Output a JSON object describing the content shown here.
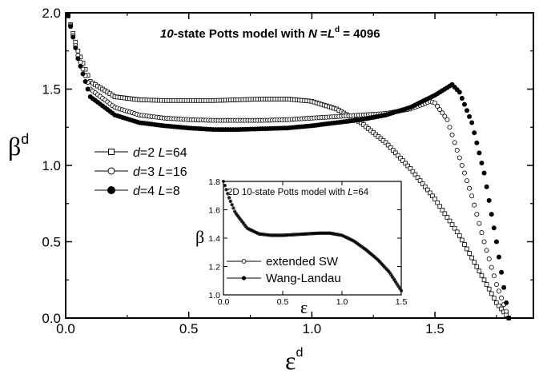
{
  "chart_data": [
    {
      "type": "scatter",
      "title_html": "10-state Potts model with N = L^d = 4096",
      "title_parts": {
        "q": "10",
        "rest": "-state Potts model with ",
        "N": "N",
        "eq1": " =",
        "L": "L",
        "sup": "d",
        "eq2": " = 4096"
      },
      "xlabel": "ε",
      "xlabel_sup": "d",
      "ylabel": "β",
      "ylabel_sup": "d",
      "xlim": [
        0,
        1.9
      ],
      "ylim": [
        0,
        2.0
      ],
      "xticks": [
        "0.0",
        "0.5",
        "1.0",
        "1.5"
      ],
      "yticks": [
        "0.0",
        "0.5",
        "1.0",
        "1.5",
        "2.0"
      ],
      "series": [
        {
          "name": "d=2 L=64",
          "label_parts": {
            "d": "d",
            "dv": "=2 ",
            "L": "L",
            "Lv": "=64"
          },
          "marker": "open-square",
          "x": [
            0.01,
            0.05,
            0.1,
            0.2,
            0.3,
            0.4,
            0.5,
            0.6,
            0.7,
            0.8,
            0.9,
            1.0,
            1.1,
            1.2,
            1.3,
            1.4,
            1.5,
            1.6,
            1.7,
            1.75,
            1.8
          ],
          "y": [
            1.98,
            1.75,
            1.55,
            1.45,
            1.43,
            1.425,
            1.425,
            1.425,
            1.43,
            1.435,
            1.435,
            1.42,
            1.37,
            1.28,
            1.15,
            0.98,
            0.78,
            0.54,
            0.25,
            0.1,
            0.0
          ]
        },
        {
          "name": "d=3 L=16",
          "label_parts": {
            "d": "d",
            "dv": "=3 ",
            "L": "L",
            "Lv": "=16"
          },
          "marker": "open-circle",
          "x": [
            0.01,
            0.05,
            0.1,
            0.2,
            0.3,
            0.4,
            0.5,
            0.6,
            0.7,
            0.8,
            0.9,
            1.0,
            1.1,
            1.2,
            1.3,
            1.4,
            1.45,
            1.48,
            1.5,
            1.55,
            1.6,
            1.65,
            1.7,
            1.75,
            1.8
          ],
          "y": [
            1.98,
            1.72,
            1.5,
            1.38,
            1.33,
            1.31,
            1.3,
            1.295,
            1.295,
            1.295,
            1.3,
            1.31,
            1.32,
            1.33,
            1.34,
            1.37,
            1.4,
            1.42,
            1.41,
            1.3,
            1.05,
            0.8,
            0.5,
            0.22,
            0.0
          ]
        },
        {
          "name": "d=4 L=8",
          "label_parts": {
            "d": "d",
            "dv": "=4 ",
            "L": "L",
            "Lv": "=8"
          },
          "marker": "filled-circle",
          "x": [
            0.01,
            0.05,
            0.1,
            0.2,
            0.3,
            0.4,
            0.5,
            0.6,
            0.7,
            0.8,
            0.9,
            1.0,
            1.1,
            1.2,
            1.3,
            1.4,
            1.5,
            1.55,
            1.57,
            1.6,
            1.65,
            1.7,
            1.75,
            1.8
          ],
          "y": [
            1.98,
            1.7,
            1.45,
            1.33,
            1.28,
            1.26,
            1.245,
            1.235,
            1.235,
            1.24,
            1.245,
            1.26,
            1.28,
            1.3,
            1.33,
            1.38,
            1.46,
            1.51,
            1.53,
            1.48,
            1.28,
            0.95,
            0.5,
            0.0
          ]
        }
      ],
      "legend_position": "middle-left"
    },
    {
      "type": "line",
      "title_parts": {
        "pre": "2D 10-state Potts model with ",
        "L": "L",
        "val": "=64"
      },
      "xlabel": "ε",
      "ylabel": "β",
      "xlim": [
        0,
        1.5
      ],
      "ylim": [
        1.0,
        1.8
      ],
      "xticks": [
        "0.0",
        "0.5",
        "1.0",
        "1.5"
      ],
      "yticks": [
        "1.0",
        "1.2",
        "1.4",
        "1.6",
        "1.8"
      ],
      "series": [
        {
          "name": "extended SW",
          "marker": "open-circle-small",
          "x": [
            0.0,
            0.05,
            0.1,
            0.2,
            0.3,
            0.4,
            0.5,
            0.6,
            0.7,
            0.8,
            0.9,
            1.0,
            1.1,
            1.2,
            1.3,
            1.4,
            1.5
          ],
          "y": [
            1.8,
            1.68,
            1.58,
            1.47,
            1.43,
            1.42,
            1.42,
            1.425,
            1.43,
            1.435,
            1.435,
            1.42,
            1.38,
            1.32,
            1.25,
            1.16,
            1.03
          ]
        },
        {
          "name": "Wang-Landau",
          "marker": "filled-circle-small",
          "x": [
            0.0,
            0.05,
            0.1,
            0.2,
            0.3,
            0.4,
            0.5,
            0.6,
            0.7,
            0.8,
            0.9,
            1.0,
            1.1,
            1.2,
            1.3,
            1.4,
            1.5
          ],
          "y": [
            1.8,
            1.68,
            1.58,
            1.47,
            1.43,
            1.42,
            1.42,
            1.425,
            1.43,
            1.435,
            1.435,
            1.42,
            1.38,
            1.32,
            1.25,
            1.16,
            1.03
          ]
        }
      ],
      "legend_position": "bottom-left"
    }
  ]
}
